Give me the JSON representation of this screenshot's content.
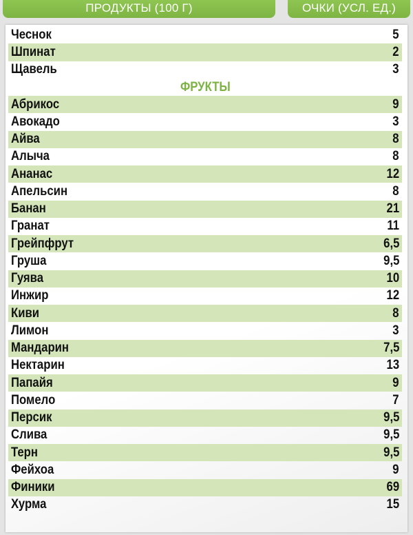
{
  "header": {
    "products": "ПРОДУКТЫ (100 Г)",
    "points": "ОЧКИ (УСЛ. ЕД.)"
  },
  "colors": {
    "accent": "#8bc34a",
    "stripe": "#d3e5b9",
    "section_text": "#7cb342"
  },
  "rows_before": [
    {
      "name": "Чеснок",
      "value": "5"
    },
    {
      "name": "Шпинат",
      "value": "2"
    },
    {
      "name": "Щавель",
      "value": "3"
    }
  ],
  "section": {
    "title": "ФРУКТЫ"
  },
  "fruits": [
    {
      "name": "Абрикос",
      "value": "9"
    },
    {
      "name": "Авокадо",
      "value": "3"
    },
    {
      "name": "Айва",
      "value": "8"
    },
    {
      "name": "Алыча",
      "value": "8"
    },
    {
      "name": "Ананас",
      "value": "12"
    },
    {
      "name": "Апельсин",
      "value": "8"
    },
    {
      "name": "Банан",
      "value": "21"
    },
    {
      "name": "Гранат",
      "value": "11"
    },
    {
      "name": "Грейпфрут",
      "value": "6,5"
    },
    {
      "name": "Груша",
      "value": "9,5"
    },
    {
      "name": "Гуява",
      "value": "10"
    },
    {
      "name": "Инжир",
      "value": "12"
    },
    {
      "name": "Киви",
      "value": "8"
    },
    {
      "name": "Лимон",
      "value": "3"
    },
    {
      "name": "Мандарин",
      "value": "7,5"
    },
    {
      "name": "Нектарин",
      "value": "13"
    },
    {
      "name": "Папайя",
      "value": "9"
    },
    {
      "name": "Помело",
      "value": "7"
    },
    {
      "name": "Персик",
      "value": "9,5"
    },
    {
      "name": "Слива",
      "value": "9,5"
    },
    {
      "name": "Терн",
      "value": "9,5"
    },
    {
      "name": "Фейхоа",
      "value": "9"
    },
    {
      "name": "Финики",
      "value": "69"
    },
    {
      "name": "Хурма",
      "value": "15"
    }
  ]
}
